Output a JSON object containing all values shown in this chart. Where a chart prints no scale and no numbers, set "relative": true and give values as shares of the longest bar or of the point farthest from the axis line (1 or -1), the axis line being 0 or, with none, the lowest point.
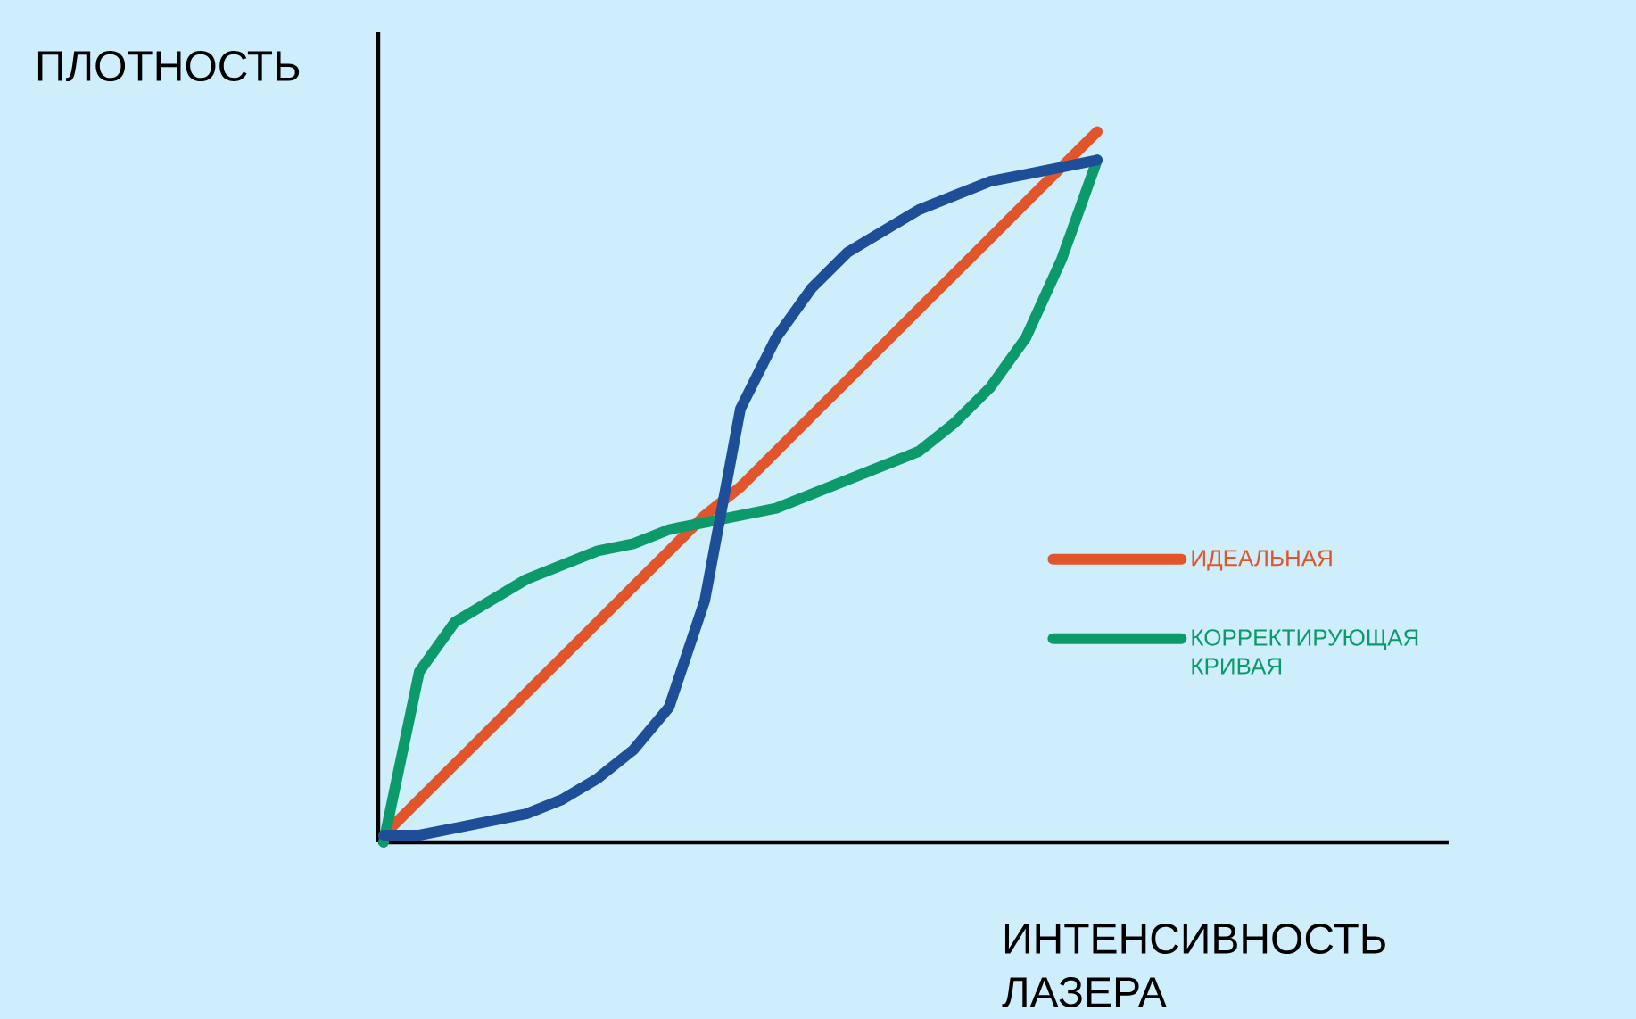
{
  "chart_data": {
    "type": "line",
    "relative": true,
    "xlabel": "ИНТЕНСИВНОСТЬ ЛАЗЕРА",
    "ylabel": "ПЛОТНОСТЬ",
    "legend": "right",
    "marker": "none",
    "line_style": "solid",
    "categories": [
      null,
      null,
      null,
      null,
      null,
      null,
      null,
      null,
      null,
      null,
      null,
      null,
      null,
      null,
      null,
      null,
      null,
      null,
      null,
      null,
      null
    ],
    "series": [
      {
        "name": "ИДЕАЛЬНАЯ",
        "color": "#e2542a",
        "values": [
          0.01,
          0.06,
          0.11,
          0.16,
          0.21,
          0.26,
          0.31,
          0.36,
          0.41,
          0.46,
          0.5,
          0.55,
          0.6,
          0.65,
          0.7,
          0.75,
          0.8,
          0.85,
          0.9,
          0.95,
          1.0
        ]
      },
      {
        "name": "КОРРЕКТИРУЮЩАЯ КРИВАЯ",
        "color": "#0d9a6a",
        "values": [
          0,
          0.24,
          0.31,
          0.34,
          0.37,
          0.39,
          0.41,
          0.42,
          0.44,
          0.45,
          0.46,
          0.47,
          0.49,
          0.51,
          0.53,
          0.55,
          0.59,
          0.64,
          0.71,
          0.82,
          0.96
        ]
      },
      {
        "color": "#1f4e99",
        "values": [
          0.01,
          0.01,
          0.02,
          0.03,
          0.04,
          0.06,
          0.09,
          0.13,
          0.19,
          0.34,
          0.61,
          0.71,
          0.78,
          0.83,
          0.86,
          0.89,
          0.91,
          0.93,
          0.94,
          0.95,
          0.96
        ]
      }
    ]
  }
}
